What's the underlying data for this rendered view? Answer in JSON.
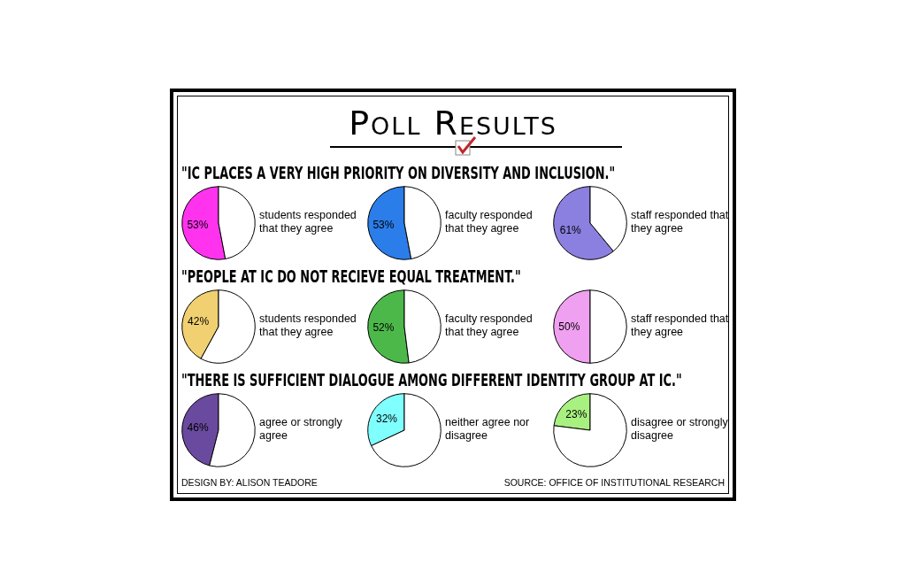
{
  "chart_data": [
    {
      "type": "other",
      "title": "Poll Results",
      "annotations": [
        "DESIGN BY: ALISON TEADORE",
        "SOURCE: OFFICE OF INSTITUTIONAL RESEARCH"
      ]
    },
    {
      "type": "pie",
      "title": "\"IC PLACES A VERY HIGH PRIORITY ON DIVERSITY AND INCLUSION.\"",
      "categories": [
        null,
        null
      ],
      "values": [
        53,
        47
      ],
      "colors": [
        "#ff33ee",
        "#ffffff"
      ],
      "value_labels": [
        "53%",
        null
      ],
      "annotations": [
        "students responded that they agree"
      ]
    },
    {
      "type": "pie",
      "categories": [
        null,
        null
      ],
      "values": [
        53,
        47
      ],
      "colors": [
        "#2b7de9",
        "#ffffff"
      ],
      "value_labels": [
        "53%",
        null
      ],
      "annotations": [
        "faculty responded that they agree"
      ]
    },
    {
      "type": "pie",
      "categories": [
        null,
        null
      ],
      "values": [
        61,
        39
      ],
      "colors": [
        "#8b7fe0",
        "#ffffff"
      ],
      "value_labels": [
        "61%",
        null
      ],
      "annotations": [
        "staff responded that they agree"
      ]
    },
    {
      "type": "pie",
      "title": "\"PEOPLE AT IC DO NOT RECIEVE EQUAL TREATMENT.\"",
      "categories": [
        null,
        null
      ],
      "values": [
        42,
        58
      ],
      "colors": [
        "#f0d070",
        "#ffffff"
      ],
      "value_labels": [
        "42%",
        null
      ],
      "annotations": [
        "students responded that they agree"
      ]
    },
    {
      "type": "pie",
      "categories": [
        null,
        null
      ],
      "values": [
        52,
        48
      ],
      "colors": [
        "#4cb84a",
        "#ffffff"
      ],
      "value_labels": [
        "52%",
        null
      ],
      "annotations": [
        "faculty responded that they agree"
      ]
    },
    {
      "type": "pie",
      "categories": [
        null,
        null
      ],
      "values": [
        50,
        50
      ],
      "colors": [
        "#f0a0f0",
        "#ffffff"
      ],
      "value_labels": [
        "50%",
        null
      ],
      "annotations": [
        "staff responded that they agree"
      ]
    },
    {
      "type": "pie",
      "title": "\"THERE IS SUFFICIENT DIALOGUE AMONG DIFFERENT IDENTITY GROUP AT IC.\"",
      "categories": [
        null,
        null
      ],
      "values": [
        46,
        54
      ],
      "colors": [
        "#6a4a9e",
        "#ffffff"
      ],
      "value_labels": [
        "46%",
        null
      ],
      "annotations": [
        "agree or strongly agree"
      ]
    },
    {
      "type": "pie",
      "categories": [
        null,
        null
      ],
      "values": [
        32,
        68
      ],
      "colors": [
        "#80ffff",
        "#ffffff"
      ],
      "value_labels": [
        "32%",
        null
      ],
      "annotations": [
        "neither agree nor disagree"
      ]
    },
    {
      "type": "pie",
      "categories": [
        null,
        null
      ],
      "values": [
        23,
        77
      ],
      "colors": [
        "#a8f080",
        "#ffffff"
      ],
      "value_labels": [
        "23%",
        null
      ],
      "annotations": [
        "disagree or strongly disagree"
      ]
    }
  ]
}
